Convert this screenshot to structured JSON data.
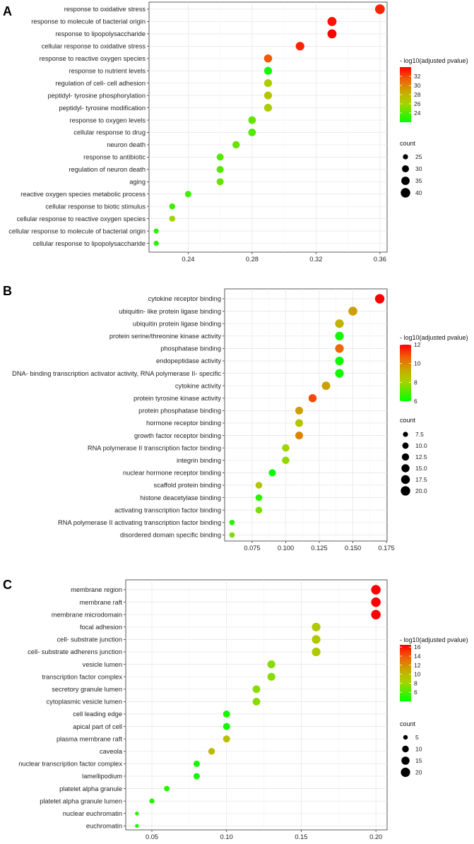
{
  "chart_data": [
    {
      "type": "scatter",
      "panel_label": "A",
      "title": "",
      "xlabel": "",
      "ylabel": "",
      "xticks": [
        "0.24",
        "0.28",
        "0.32",
        "0.36"
      ],
      "xtick_values": [
        0.24,
        0.28,
        0.32,
        0.36
      ],
      "xlim": [
        0.2155,
        0.3645
      ],
      "grid": true,
      "color_legend": {
        "title": "- log10(adjusted pvalue)",
        "range": [
          22,
          34
        ],
        "ticks": [
          "32",
          "30",
          "28",
          "26",
          "24"
        ],
        "tick_values": [
          32,
          30,
          28,
          26,
          24
        ]
      },
      "size_legend": {
        "title": "count",
        "range": [
          22,
          42
        ],
        "ticks": [
          "25",
          "30",
          "35",
          "40"
        ],
        "tick_values": [
          25,
          30,
          35,
          40
        ]
      },
      "categories": [
        "response to oxidative stress",
        "response to molecule of bacterial origin",
        "response to lipopolysaccharide",
        "cellular response to oxidative stress",
        "response to reactive oxygen species",
        "response to nutrient levels",
        "regulation of cell- cell adhesion",
        "peptidyl- tyrosine phosphorylation",
        "peptidyl- tyrosine modification",
        "response to oxygen levels",
        "cellular response to drug",
        "neuron death",
        "response to antibiotic",
        "regulation of neuron death",
        "aging",
        "reactive oxygen species metabolic process",
        "cellular response to biotic stimulus",
        "cellular response to reactive oxygen species",
        "cellular response to molecule of bacterial origin",
        "cellular response to lipopolysaccharide"
      ],
      "x": [
        0.36,
        0.33,
        0.33,
        0.31,
        0.29,
        0.29,
        0.29,
        0.29,
        0.29,
        0.28,
        0.28,
        0.27,
        0.26,
        0.26,
        0.26,
        0.24,
        0.23,
        0.23,
        0.22,
        0.22
      ],
      "count": [
        41,
        38,
        38,
        36,
        34,
        33,
        33,
        33,
        33,
        32,
        32,
        31,
        30,
        30,
        30,
        28,
        27,
        27,
        25,
        25
      ],
      "pvalue": [
        33,
        33.5,
        34,
        33,
        31.5,
        22.5,
        26.5,
        27,
        26.5,
        24.5,
        24,
        24.5,
        24,
        24,
        24.5,
        23.5,
        23.5,
        26,
        23,
        23
      ]
    },
    {
      "type": "scatter",
      "panel_label": "B",
      "title": "",
      "xlabel": "",
      "ylabel": "",
      "xticks": [
        "0.075",
        "0.100",
        "0.125",
        "0.150",
        "0.175"
      ],
      "xtick_values": [
        0.075,
        0.1,
        0.125,
        0.15,
        0.175
      ],
      "xlim": [
        0.0545,
        0.1755
      ],
      "grid": true,
      "color_legend": {
        "title": "- log10(adjusted pvalue)",
        "range": [
          6,
          12
        ],
        "ticks": [
          "12",
          "10",
          "8",
          "6"
        ],
        "tick_values": [
          12,
          10,
          8,
          6
        ]
      },
      "size_legend": {
        "title": "count",
        "range": [
          5,
          22
        ],
        "ticks": [
          "7.5",
          "10.0",
          "12.5",
          "15.0",
          "17.5",
          "20.0"
        ],
        "tick_values": [
          7.5,
          10,
          12.5,
          15,
          17.5,
          20
        ]
      },
      "categories": [
        "cytokine receptor binding",
        "ubiquitin- like protein ligase binding",
        "ubiquitin protein ligase binding",
        "protein serine/threonine kinase activity",
        "phosphatase binding",
        "endopeptidase activity",
        "DNA- binding transcription activator activity, RNA polymerase II- specific",
        "cytokine activity",
        "protein tyrosine kinase activity",
        "protein phosphatase binding",
        "hormone receptor binding",
        "growth factor receptor binding",
        "RNA polymerase II transcription factor binding",
        "integrin binding",
        "nuclear hormone receptor binding",
        "scaffold protein binding",
        "histone deacetylase binding",
        "activating transcription factor binding",
        "RNA polymerase II activating transcription factor binding",
        "disordered domain specific binding"
      ],
      "x": [
        0.17,
        0.15,
        0.14,
        0.14,
        0.14,
        0.14,
        0.14,
        0.13,
        0.12,
        0.11,
        0.11,
        0.11,
        0.1,
        0.1,
        0.09,
        0.08,
        0.08,
        0.08,
        0.06,
        0.06
      ],
      "count": [
        20,
        18,
        17,
        17,
        17,
        17,
        17,
        16,
        15,
        14,
        14,
        14,
        13,
        13,
        12,
        11,
        11,
        11,
        8,
        8
      ],
      "pvalue": [
        12,
        9.5,
        9,
        6.2,
        10.5,
        6.2,
        6.2,
        9.5,
        11,
        9.5,
        8.5,
        10,
        8,
        7.8,
        6,
        8.5,
        6.5,
        7.5,
        6.5,
        7.5
      ]
    },
    {
      "type": "scatter",
      "panel_label": "C",
      "title": "",
      "xlabel": "",
      "ylabel": "",
      "xticks": [
        "0.05",
        "0.10",
        "0.15",
        "0.20"
      ],
      "xtick_values": [
        0.05,
        0.1,
        0.15,
        0.2
      ],
      "xlim": [
        0.0325,
        0.2075
      ],
      "grid": true,
      "color_legend": {
        "title": "- log10(adjusted pvalue)",
        "range": [
          4,
          16.5
        ],
        "ticks": [
          "16",
          "14",
          "12",
          "10",
          "8",
          "6"
        ],
        "tick_values": [
          16,
          14,
          12,
          10,
          8,
          6
        ]
      },
      "size_legend": {
        "title": "count",
        "range": [
          3,
          23
        ],
        "ticks": [
          "5",
          "10",
          "15",
          "20"
        ],
        "tick_values": [
          5,
          10,
          15,
          20
        ]
      },
      "categories": [
        "membrane region",
        "membrane raft",
        "membrane microdomain",
        "focal adhesion",
        "cell- substrate junction",
        "cell- substrate adherens junction",
        "vesicle lumen",
        "transcription factor complex",
        "secretory granule lumen",
        "cytoplasmic vesicle lumen",
        "cell leading edge",
        "apical part of cell",
        "plasma membrane raft",
        "caveola",
        "nuclear transcription factor complex",
        "lamellipodium",
        "platelet alpha granule",
        "platelet alpha granule lumen",
        "nuclear euchromatin",
        "euchromatin"
      ],
      "x": [
        0.2,
        0.2,
        0.2,
        0.16,
        0.16,
        0.16,
        0.13,
        0.13,
        0.12,
        0.12,
        0.1,
        0.1,
        0.1,
        0.09,
        0.08,
        0.08,
        0.06,
        0.05,
        0.04,
        0.04
      ],
      "count": [
        21,
        21,
        21,
        17,
        17,
        17,
        14,
        14,
        13,
        13,
        11,
        11,
        11,
        10,
        9,
        9,
        7,
        6,
        4,
        4
      ],
      "pvalue": [
        16.5,
        16.5,
        16.5,
        9,
        9,
        9,
        7.5,
        7.5,
        7.5,
        7.5,
        4.5,
        4.5,
        9.5,
        10,
        4.5,
        4.5,
        5,
        5,
        5,
        5
      ]
    }
  ]
}
